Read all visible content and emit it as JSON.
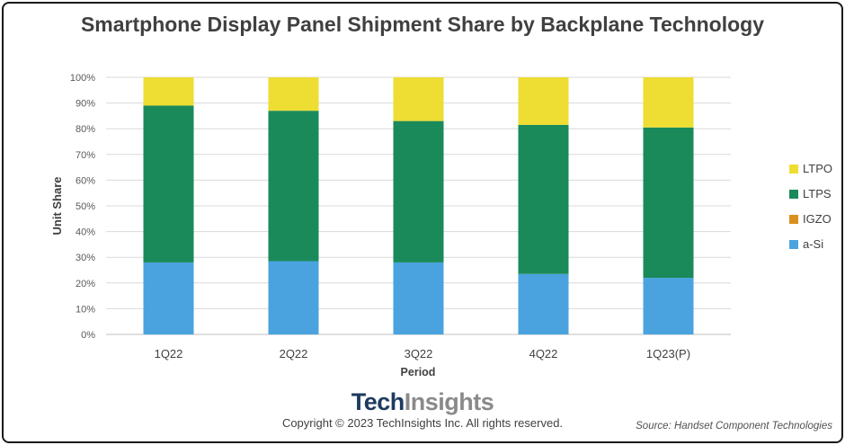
{
  "chart_data": {
    "type": "bar",
    "stacked": true,
    "title": "Smartphone Display Panel Shipment Share by Backplane Technology",
    "xlabel": "Period",
    "ylabel": "Unit Share",
    "categories": [
      "1Q22",
      "2Q22",
      "3Q22",
      "4Q22",
      "1Q23(P)"
    ],
    "ylim": [
      0,
      100
    ],
    "yticks": [
      "0%",
      "10%",
      "20%",
      "30%",
      "40%",
      "50%",
      "60%",
      "70%",
      "80%",
      "90%",
      "100%"
    ],
    "grid": true,
    "legend_position": "right",
    "series": [
      {
        "name": "a-Si",
        "color": "#4aa3df",
        "values": [
          28,
          28.5,
          28,
          23.5,
          22
        ]
      },
      {
        "name": "IGZO",
        "color": "#d9901e",
        "values": [
          0,
          0,
          0,
          0,
          0
        ]
      },
      {
        "name": "LTPS",
        "color": "#1a8a5a",
        "values": [
          61,
          58.5,
          55,
          58,
          58.5
        ]
      },
      {
        "name": "LTPO",
        "color": "#eedd33",
        "values": [
          11,
          13,
          17,
          18.5,
          19.5
        ]
      }
    ],
    "legend_order": [
      "LTPO",
      "LTPS",
      "IGZO",
      "a-Si"
    ]
  },
  "branding": {
    "logo_part1": "Tech",
    "logo_part2": "Insights",
    "copyright": "Copyright © 2023 TechInsights Inc.  All rights reserved.",
    "source": "Source: Handset Component Technologies"
  }
}
